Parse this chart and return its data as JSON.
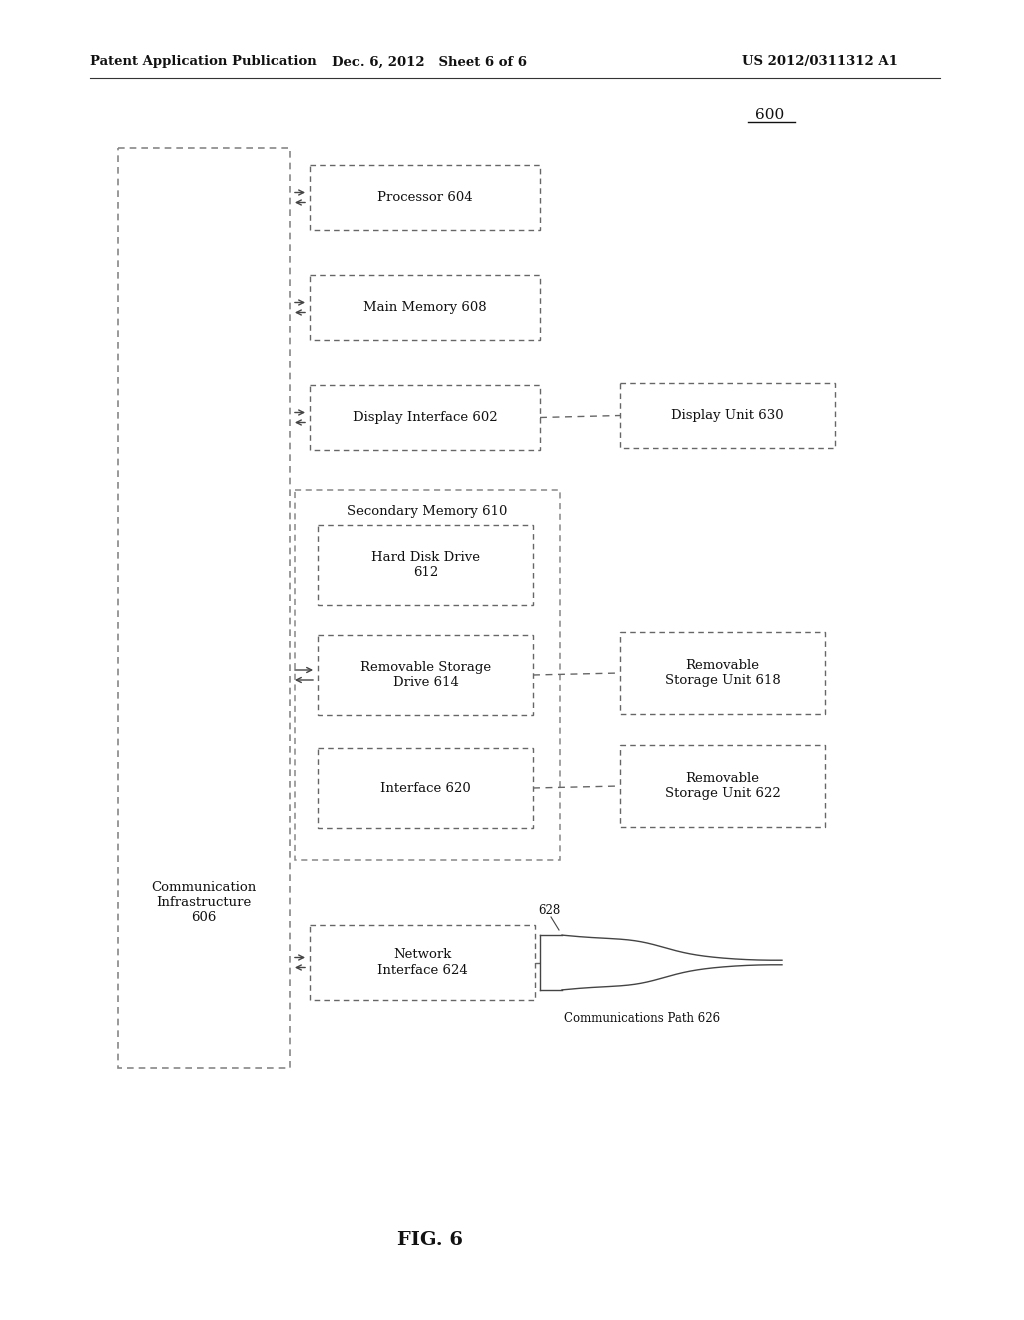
{
  "bg_color": "#ffffff",
  "header_left": "Patent Application Publication",
  "header_mid": "Dec. 6, 2012   Sheet 6 of 6",
  "header_right": "US 2012/0311312 A1",
  "fig_label": "FIG. 6",
  "diagram_label": "600",
  "comm_infra_label": "Communication\nInfrastructure\n606",
  "line_color": "#444444",
  "dashed_color": "#666666",
  "font_size_box": 9.5,
  "font_size_header": 9.5,
  "font_size_fig": 14
}
